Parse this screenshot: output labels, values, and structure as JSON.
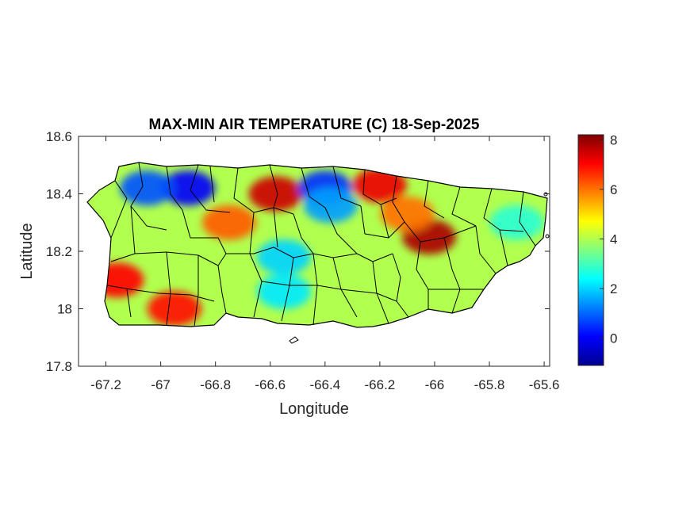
{
  "chart_data": {
    "type": "heatmap",
    "title": "MAX-MIN AIR TEMPERATURE (C) 18-Sep-2025",
    "xlabel": "Longitude",
    "ylabel": "Latitude",
    "xlim": [
      -67.3,
      -65.58
    ],
    "ylim": [
      17.8,
      18.6
    ],
    "xticks": [
      -67.2,
      -67,
      -66.8,
      -66.6,
      -66.4,
      -66.2,
      -66,
      -65.8,
      -65.6
    ],
    "xtick_labels": [
      "-67.2",
      "-67",
      "-66.8",
      "-66.6",
      "-66.4",
      "-66.2",
      "-66",
      "-65.8",
      "-65.6"
    ],
    "yticks": [
      17.8,
      18,
      18.2,
      18.4,
      18.6
    ],
    "ytick_labels": [
      "17.8",
      "18",
      "18.2",
      "18.4",
      "18.6"
    ],
    "colorbar": {
      "colormap": "jet",
      "range": [
        -1.1,
        8.2
      ],
      "ticks": [
        0,
        2,
        4,
        6,
        8
      ],
      "tick_labels": [
        "0",
        "2",
        "4",
        "6",
        "8"
      ]
    },
    "field_hotspots": [
      {
        "lon": -66.58,
        "lat": 18.4,
        "value": 7.5
      },
      {
        "lon": -66.2,
        "lat": 18.43,
        "value": 7.2
      },
      {
        "lon": -66.02,
        "lat": 18.25,
        "value": 7.8
      },
      {
        "lon": -67.16,
        "lat": 18.1,
        "value": 7.0
      },
      {
        "lon": -66.95,
        "lat": 18.0,
        "value": 6.9
      },
      {
        "lon": -66.75,
        "lat": 18.3,
        "value": 6.2
      },
      {
        "lon": -66.1,
        "lat": 18.33,
        "value": 6.0
      },
      {
        "lon": -66.9,
        "lat": 18.42,
        "value": 0.0
      },
      {
        "lon": -67.05,
        "lat": 18.42,
        "value": 0.8
      },
      {
        "lon": -66.4,
        "lat": 18.42,
        "value": 0.5
      },
      {
        "lon": -66.38,
        "lat": 18.36,
        "value": 1.5
      },
      {
        "lon": -66.55,
        "lat": 18.18,
        "value": 2.0
      },
      {
        "lon": -66.55,
        "lat": 18.06,
        "value": 2.2
      },
      {
        "lon": -65.7,
        "lat": 18.3,
        "value": 2.8
      }
    ],
    "background_value": 4.0,
    "colors": {
      "axes": "#262626",
      "boundary": "#000000",
      "background": "#ffffff"
    }
  }
}
